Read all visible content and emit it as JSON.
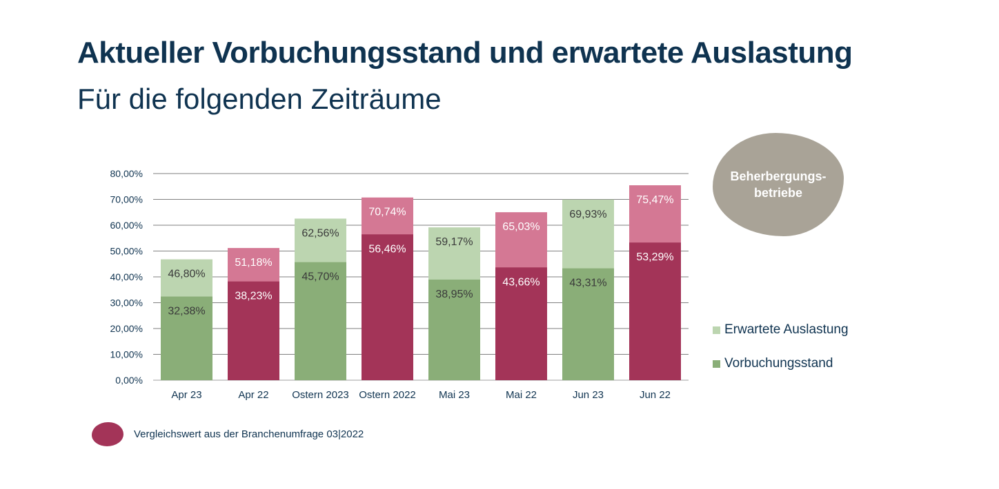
{
  "title": "Aktueller Vorbuchungsstand und erwartete Auslastung",
  "subtitle": "Für die folgenden Zeiträume",
  "badge": {
    "label": "Beherbergungs-\nbetriebe"
  },
  "footnote": {
    "text": "Vergleichswert aus der Branchenumfrage 03|2022"
  },
  "colors": {
    "green_dark": "#8aae78",
    "green_light": "#bcd5b0",
    "red_dark": "#a33458",
    "red_light": "#d47894",
    "badge": "#a9a397",
    "text": "#0f3350"
  },
  "chart_data": {
    "type": "bar",
    "stacked": false,
    "categories": [
      "Apr 23",
      "Apr 22",
      "Ostern 2023",
      "Ostern 2022",
      "Mai 23",
      "Mai 22",
      "Jun 23",
      "Jun 22"
    ],
    "comparison": [
      false,
      true,
      false,
      true,
      false,
      true,
      false,
      true
    ],
    "series": [
      {
        "name": "Erwartete Auslastung",
        "values": [
          46.8,
          51.18,
          62.56,
          70.74,
          59.17,
          65.03,
          69.93,
          75.47
        ]
      },
      {
        "name": "Vorbuchungsstand",
        "values": [
          32.38,
          38.23,
          45.7,
          56.46,
          38.95,
          43.66,
          43.31,
          53.29
        ]
      }
    ],
    "y_ticks": [
      "0,00%",
      "10,00%",
      "20,00%",
      "30,00%",
      "40,00%",
      "50,00%",
      "60,00%",
      "70,00%",
      "80,00%"
    ],
    "value_labels": {
      "Erwartete Auslastung": [
        "46,80%",
        "51,18%",
        "62,56%",
        "70,74%",
        "59,17%",
        "65,03%",
        "69,93%",
        "75,47%"
      ],
      "Vorbuchungsstand": [
        "32,38%",
        "38,23%",
        "45,70%",
        "56,46%",
        "38,95%",
        "43,66%",
        "43,31%",
        "53,29%"
      ]
    },
    "ylim": [
      0,
      80
    ],
    "grid": true,
    "legend_position": "right",
    "xlabel": "",
    "ylabel": ""
  }
}
